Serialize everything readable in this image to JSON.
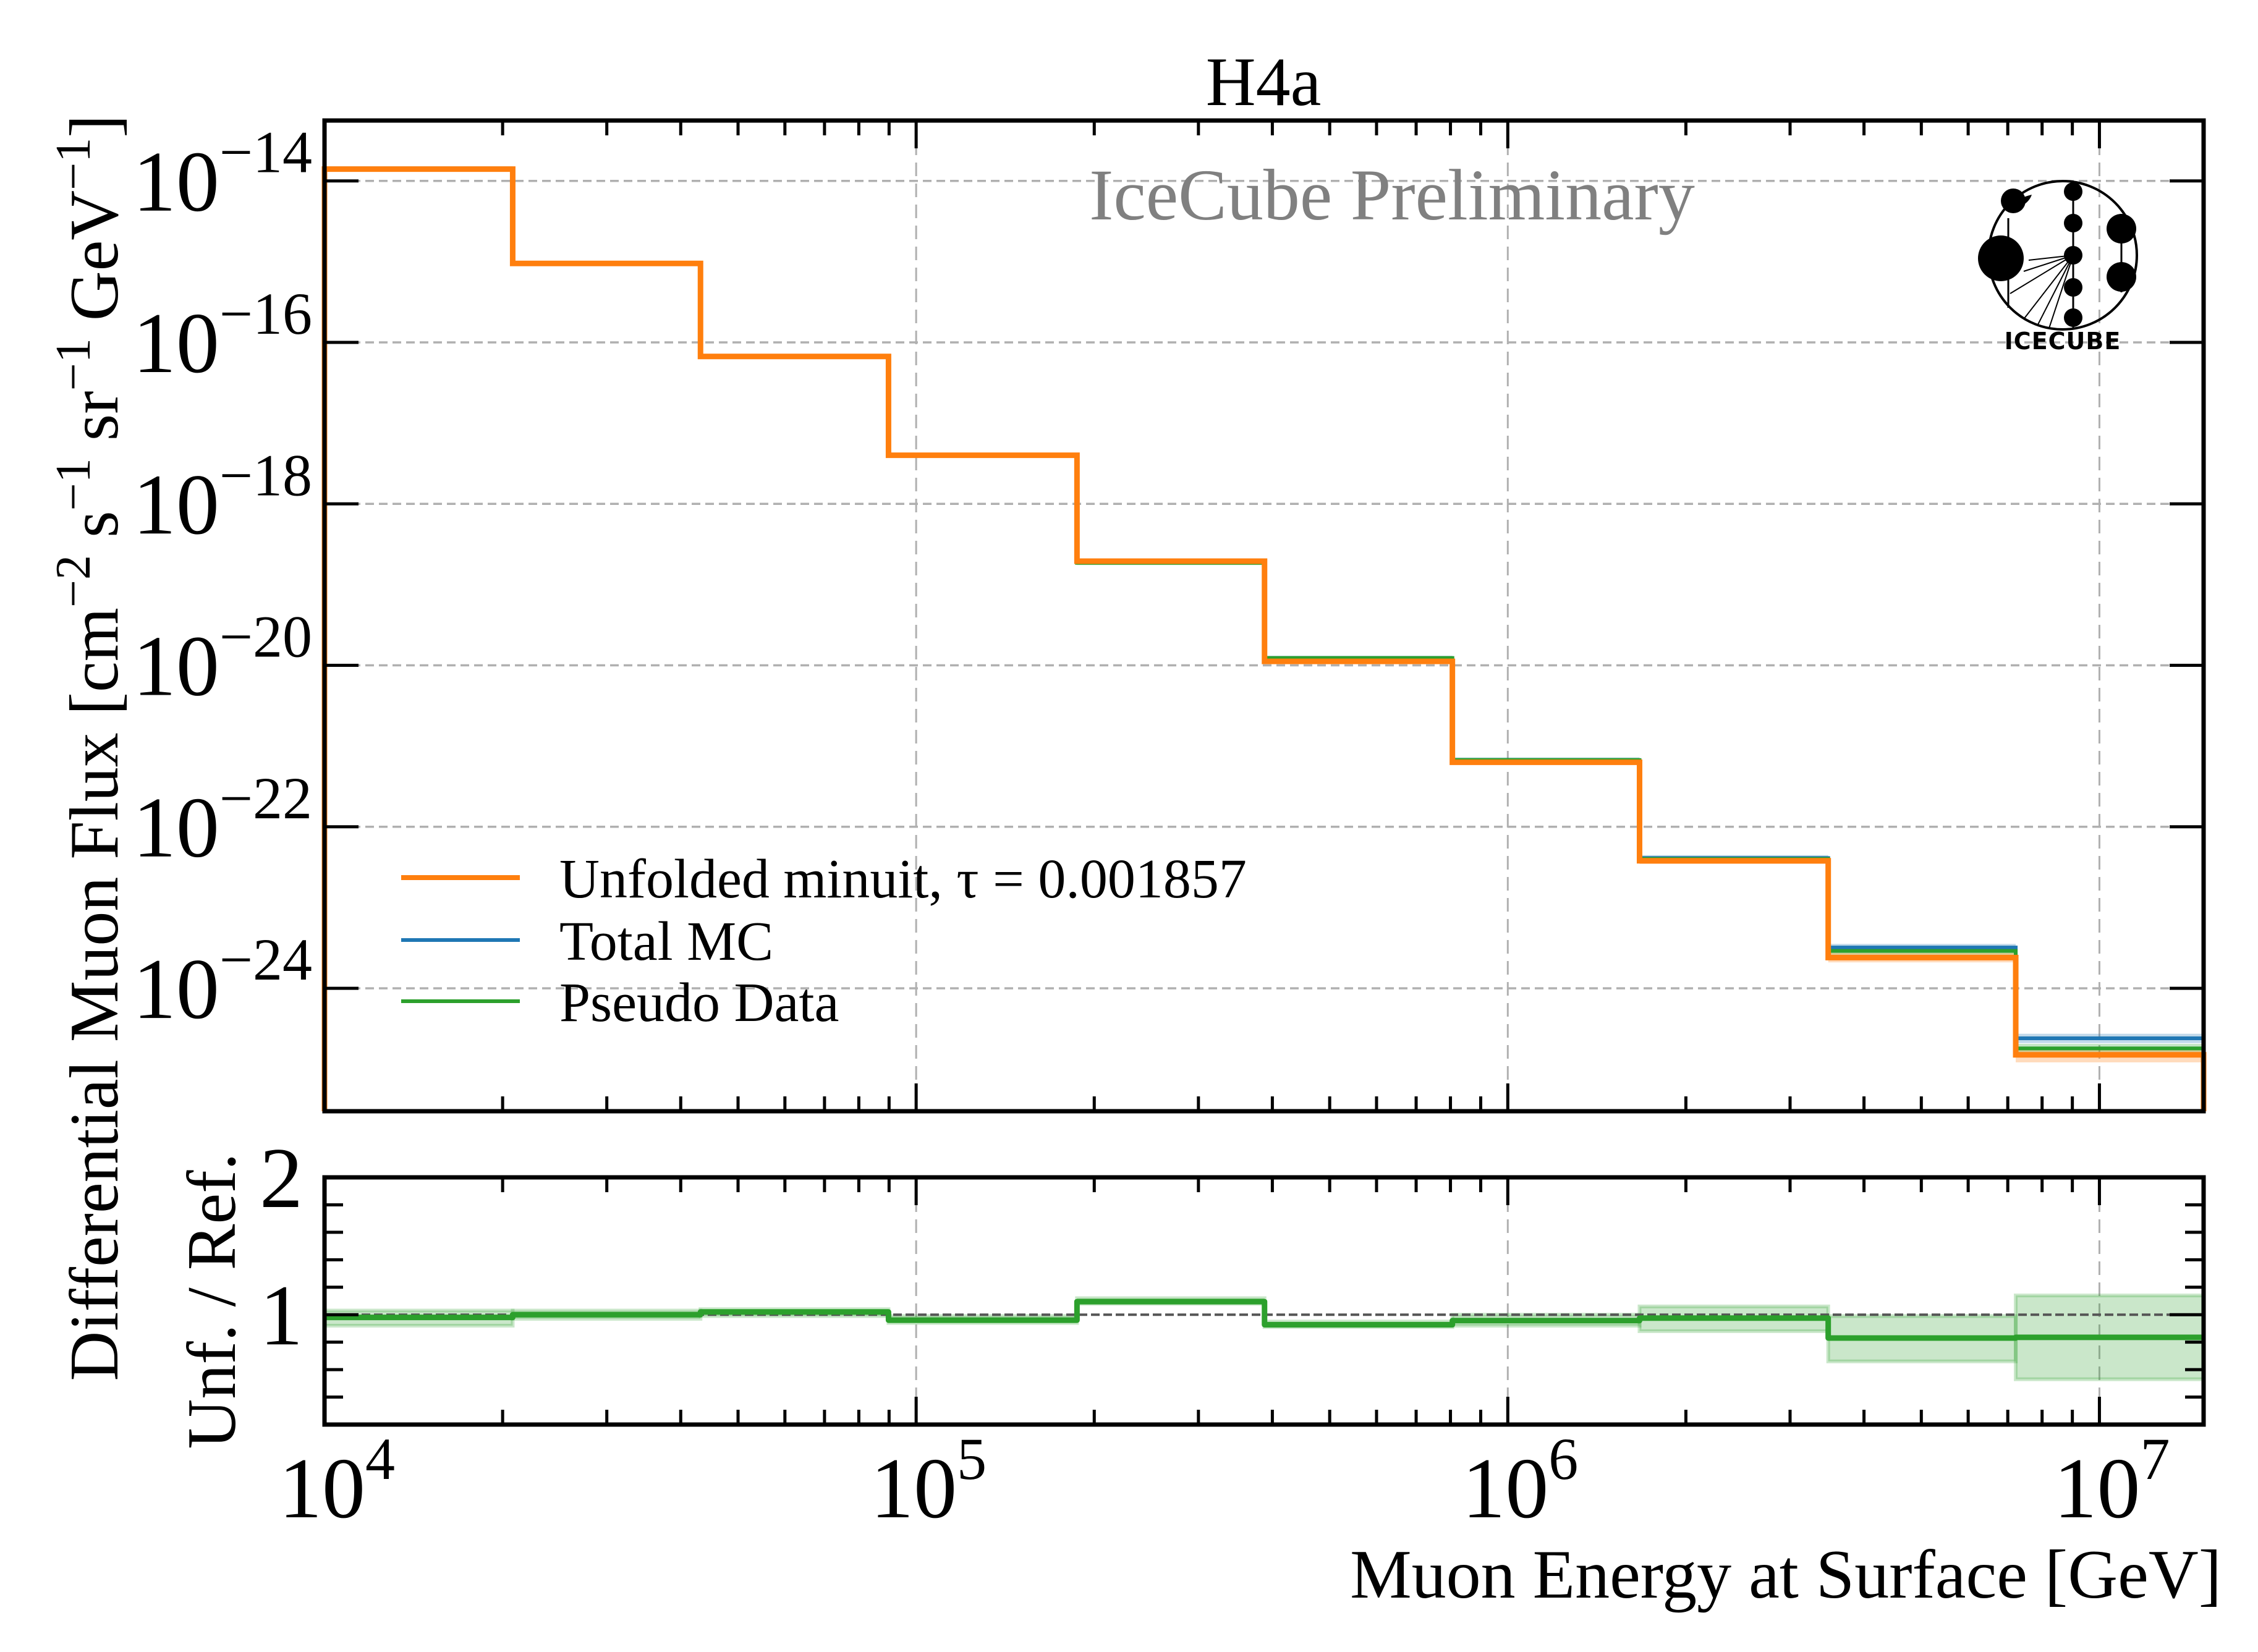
{
  "chart_data": [
    {
      "panel": "main",
      "type": "line",
      "style": "step-histogram",
      "title": "H4a",
      "annotation": "IceCube Preliminary",
      "logo_text": "ICECUBE",
      "xlabel": "Muon Energy at Surface [GeV]",
      "ylabel": "Differential Muon Flux [cm⁻² s⁻¹ sr⁻¹ GeV⁻¹]",
      "ylabel_parts": {
        "main": "Differential Muon Flux [cm",
        "u1": "−2",
        "s": " s",
        "u2": "−1",
        "sr": " sr",
        "u3": "−1",
        "gev": " GeV",
        "u4": "−1",
        "close": "]"
      },
      "xscale": "log",
      "yscale": "log",
      "xlim": [
        10000,
        15000000
      ],
      "ylim": [
        3e-26,
        5.6e-14
      ],
      "x_ticks": [
        {
          "base": "10",
          "exp": "4",
          "value": 10000
        },
        {
          "base": "10",
          "exp": "5",
          "value": 100000
        },
        {
          "base": "10",
          "exp": "6",
          "value": 1000000
        },
        {
          "base": "10",
          "exp": "7",
          "value": 10000000
        }
      ],
      "y_ticks": [
        {
          "base": "10",
          "exp": "−14",
          "value": 1e-14
        },
        {
          "base": "10",
          "exp": "−16",
          "value": 1e-16
        },
        {
          "base": "10",
          "exp": "−18",
          "value": 1e-18
        },
        {
          "base": "10",
          "exp": "−20",
          "value": 1e-20
        },
        {
          "base": "10",
          "exp": "−22",
          "value": 1e-22
        },
        {
          "base": "10",
          "exp": "−24",
          "value": 1e-24
        }
      ],
      "grid": true,
      "legend_position": "lower-left",
      "bin_edges": [
        10000,
        20800,
        43200,
        89800,
        187000,
        388000,
        806000,
        1670000,
        3480000,
        7220000,
        15000000
      ],
      "series": [
        {
          "name": "Total MC",
          "color": "#1f77b4",
          "values": [
            1.43e-14,
            9.5e-16,
            6.7e-17,
            4e-18,
            1.9e-19,
            1.23e-20,
            6.7e-22,
            4.1e-23,
            3.2e-24,
            2.4e-25
          ],
          "band_rel": [
            0.005,
            0.005,
            0.005,
            0.01,
            0.01,
            0.01,
            0.02,
            0.03,
            0.05,
            0.08
          ]
        },
        {
          "name": "Pseudo Data",
          "color": "#2ca02c",
          "values": [
            1.43e-14,
            9.5e-16,
            6.7e-17,
            4e-18,
            1.86e-19,
            1.23e-20,
            6.7e-22,
            4e-23,
            2.9e-24,
            1.8e-25
          ],
          "band_rel": [
            0.005,
            0.005,
            0.005,
            0.01,
            0.01,
            0.01,
            0.02,
            0.03,
            0.05,
            0.08
          ]
        },
        {
          "name": "Unfolded minuit, τ = 0.001857",
          "color": "#ff7f0e",
          "values": [
            1.4e-14,
            9.5e-16,
            6.7e-17,
            4e-18,
            1.95e-19,
            1.12e-20,
            6.3e-22,
            3.8e-23,
            2.4e-24,
            1.5e-25
          ],
          "band_rel": [
            0.005,
            0.005,
            0.005,
            0.01,
            0.01,
            0.01,
            0.02,
            0.04,
            0.08,
            0.15
          ]
        }
      ],
      "legend": [
        {
          "label": "Unfolded minuit, τ = 0.001857",
          "color": "#ff7f0e"
        },
        {
          "label": "Total MC",
          "color": "#1f77b4"
        },
        {
          "label": "Pseudo Data",
          "color": "#2ca02c"
        }
      ]
    },
    {
      "panel": "ratio",
      "type": "line",
      "style": "step-histogram",
      "xlabel": "Muon Energy at Surface [GeV]",
      "ylabel": "Unf. / Ref.",
      "xscale": "log",
      "xlim": [
        10000,
        15000000
      ],
      "ylim": [
        0.2,
        2.0
      ],
      "y_ticks": [
        {
          "label": "1",
          "value": 1
        },
        {
          "label": "2",
          "value": 2
        }
      ],
      "y_minor_ticks": [
        0.4,
        0.6,
        0.8,
        1.2,
        1.4,
        1.6,
        1.8
      ],
      "reference_line": 1.0,
      "bin_edges": [
        10000,
        20800,
        43200,
        89800,
        187000,
        388000,
        806000,
        1670000,
        3480000,
        7220000,
        15000000
      ],
      "series": [
        {
          "name": "Unfolded / Reference",
          "color": "#2ca02c",
          "values": [
            0.98,
            1.0,
            1.02,
            0.96,
            1.095,
            0.927,
            0.957,
            0.975,
            0.83,
            0.835
          ],
          "band_low": [
            0.92,
            0.97,
            0.99,
            0.94,
            1.08,
            0.91,
            0.92,
            0.88,
            0.66,
            0.53
          ],
          "band_high": [
            1.03,
            1.03,
            1.04,
            0.99,
            1.12,
            0.95,
            1.0,
            1.06,
            0.99,
            1.14
          ]
        }
      ]
    }
  ]
}
